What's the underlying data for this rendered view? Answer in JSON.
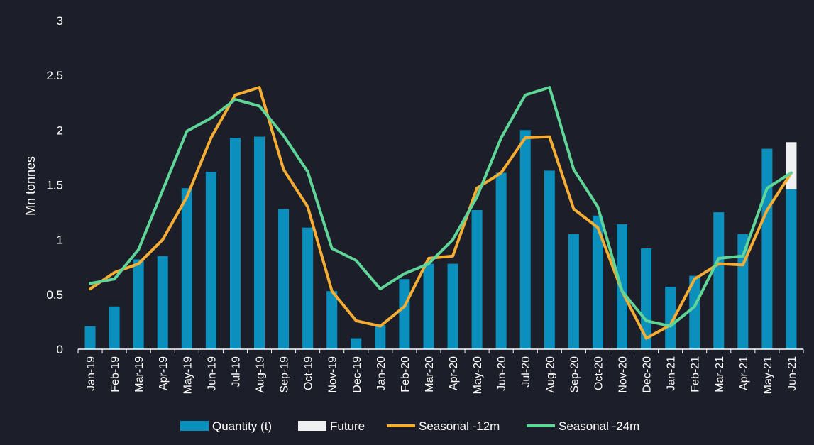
{
  "chart_data": {
    "type": "bar+line",
    "ylabel": "Mn tonnes",
    "ylim": [
      0,
      3
    ],
    "yticks": [
      "0",
      "0.5",
      "1",
      "1.5",
      "2",
      "2.5",
      "3"
    ],
    "categories": [
      "Jan-19",
      "Feb-19",
      "Mar-19",
      "Apr-19",
      "May-19",
      "Jun-19",
      "Jul-19",
      "Aug-19",
      "Sep-19",
      "Oct-19",
      "Nov-19",
      "Dec-19",
      "Jan-20",
      "Feb-20",
      "Mar-20",
      "Apr-20",
      "May-20",
      "Jun-20",
      "Jul-20",
      "Aug-20",
      "Sep-20",
      "Oct-20",
      "Nov-20",
      "Dec-20",
      "Jan-21",
      "Feb-21",
      "Mar-21",
      "Apr-21",
      "May-21",
      "Jun-21"
    ],
    "series": [
      {
        "name": "Quantity (t)",
        "kind": "bar",
        "color": "#0b8fbd",
        "values": [
          0.21,
          0.39,
          0.82,
          0.85,
          1.47,
          1.62,
          1.93,
          1.94,
          1.28,
          1.11,
          0.53,
          0.1,
          0.22,
          0.64,
          0.78,
          0.78,
          1.27,
          1.61,
          2.0,
          1.63,
          1.05,
          1.22,
          1.14,
          0.92,
          0.57,
          0.67,
          1.25,
          1.05,
          1.83,
          1.46
        ]
      },
      {
        "name": "Future",
        "kind": "bar-stack",
        "color": "#eef0f2",
        "values": [
          0,
          0,
          0,
          0,
          0,
          0,
          0,
          0,
          0,
          0,
          0,
          0,
          0,
          0,
          0,
          0,
          0,
          0,
          0,
          0,
          0,
          0,
          0,
          0,
          0,
          0,
          0,
          0,
          0,
          0.43
        ]
      },
      {
        "name": "Seasonal -12m",
        "kind": "line",
        "color": "#f5ad34",
        "values": [
          0.55,
          0.7,
          0.78,
          1.0,
          1.39,
          1.93,
          2.32,
          2.39,
          1.64,
          1.3,
          0.53,
          0.26,
          0.21,
          0.39,
          0.83,
          0.85,
          1.47,
          1.61,
          1.93,
          1.94,
          1.28,
          1.11,
          0.53,
          0.1,
          0.22,
          0.64,
          0.78,
          0.77,
          1.27,
          1.61
        ]
      },
      {
        "name": "Seasonal -24m",
        "kind": "line",
        "color": "#5fd598",
        "values": [
          0.6,
          0.64,
          0.91,
          1.45,
          1.99,
          2.11,
          2.28,
          2.22,
          1.95,
          1.62,
          0.92,
          0.81,
          0.55,
          0.69,
          0.78,
          1.0,
          1.39,
          1.93,
          2.32,
          2.39,
          1.64,
          1.3,
          0.53,
          0.26,
          0.21,
          0.39,
          0.83,
          0.85,
          1.47,
          1.61
        ]
      }
    ],
    "legend": [
      "Quantity (t)",
      "Future",
      "Seasonal -12m",
      "Seasonal -24m"
    ],
    "legend_position": "bottom"
  }
}
